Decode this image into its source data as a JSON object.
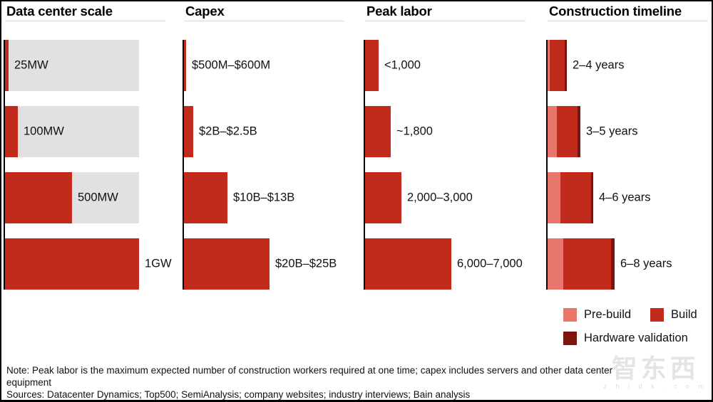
{
  "colors": {
    "build": "#c02b1c",
    "prebuild": "#e8766d",
    "hardware": "#7c150f",
    "track": "#e1e1e1"
  },
  "panels": [
    {
      "title": "Data center scale",
      "rows": [
        {
          "label": "25MW",
          "track": 188,
          "segments": [
            [
              "build",
              5
            ]
          ]
        },
        {
          "label": "100MW",
          "track": 188,
          "segments": [
            [
              "build",
              18
            ]
          ]
        },
        {
          "label": "500MW",
          "track": 188,
          "segments": [
            [
              "build",
              94
            ]
          ]
        },
        {
          "label": "1GW",
          "track": 188,
          "segments": [
            [
              "build",
              188
            ]
          ]
        }
      ]
    },
    {
      "title": "Capex",
      "rows": [
        {
          "label": "$500M–$600M",
          "segments": [
            [
              "build",
              3
            ]
          ]
        },
        {
          "label": "$2B–$2.5B",
          "segments": [
            [
              "build",
              13
            ]
          ]
        },
        {
          "label": "$10B–$13B",
          "segments": [
            [
              "build",
              61
            ]
          ]
        },
        {
          "label": "$20B–$25B",
          "segments": [
            [
              "build",
              120
            ]
          ]
        }
      ]
    },
    {
      "title": "Peak labor",
      "rows": [
        {
          "label": "<1,000",
          "segments": [
            [
              "build",
              19
            ]
          ]
        },
        {
          "label": "~1,800",
          "segments": [
            [
              "build",
              36
            ]
          ]
        },
        {
          "label": "2,000–3,000",
          "segments": [
            [
              "build",
              51
            ]
          ]
        },
        {
          "label": "6,000–7,000",
          "segments": [
            [
              "build",
              121
            ]
          ]
        }
      ]
    },
    {
      "title": "Construction timeline",
      "rows": [
        {
          "label": "2–4 years",
          "segments": [
            [
              "prebuild",
              3
            ],
            [
              "build",
              21
            ],
            [
              "hardware",
              3
            ]
          ]
        },
        {
          "label": "3–5 years",
          "segments": [
            [
              "prebuild",
              13
            ],
            [
              "build",
              29
            ],
            [
              "hardware",
              4
            ]
          ]
        },
        {
          "label": "4–6 years",
          "segments": [
            [
              "prebuild",
              18
            ],
            [
              "build",
              43
            ],
            [
              "hardware",
              3
            ]
          ]
        },
        {
          "label": "6–8 years",
          "segments": [
            [
              "prebuild",
              22
            ],
            [
              "build",
              67
            ],
            [
              "hardware",
              5
            ]
          ]
        }
      ]
    }
  ],
  "legend": {
    "items": [
      {
        "label": "Pre-build",
        "color": "prebuild"
      },
      {
        "label": "Build",
        "color": "build"
      },
      {
        "label": "Hardware validation",
        "color": "hardware"
      }
    ]
  },
  "notes": {
    "note": "Note: Peak labor is the maximum expected number of construction workers required at one time; capex includes servers and other data center equipment",
    "sources": "Sources: Datacenter Dynamics; Top500; SemiAnalysis; company websites; industry interviews; Bain analysis"
  },
  "watermark": {
    "text": "智东西",
    "subtext": "z h i d x . c o m"
  },
  "chart_data": [
    {
      "type": "bar",
      "orientation": "horizontal",
      "title": "Data center scale",
      "categories": [
        "25MW",
        "100MW",
        "500MW",
        "1GW"
      ],
      "values_mw": [
        25,
        100,
        500,
        1000
      ],
      "axis_max_mw": 1000,
      "background_track": true
    },
    {
      "type": "bar",
      "orientation": "horizontal",
      "title": "Capex",
      "categories": [
        "25MW",
        "100MW",
        "500MW",
        "1GW"
      ],
      "value_labels": [
        "$500M–$600M",
        "$2B–$2.5B",
        "$10B–$13B",
        "$20B–$25B"
      ],
      "values_usd_billions_range": [
        [
          0.5,
          0.6
        ],
        [
          2,
          2.5
        ],
        [
          10,
          13
        ],
        [
          20,
          25
        ]
      ]
    },
    {
      "type": "bar",
      "orientation": "horizontal",
      "title": "Peak labor",
      "categories": [
        "25MW",
        "100MW",
        "500MW",
        "1GW"
      ],
      "value_labels": [
        "<1,000",
        "~1,800",
        "2,000–3,000",
        "6,000–7,000"
      ],
      "values_workers_range": [
        [
          0,
          1000
        ],
        [
          1800,
          1800
        ],
        [
          2000,
          3000
        ],
        [
          6000,
          7000
        ]
      ]
    },
    {
      "type": "bar",
      "orientation": "horizontal",
      "stacked": true,
      "title": "Construction timeline",
      "categories": [
        "25MW",
        "100MW",
        "500MW",
        "1GW"
      ],
      "value_labels": [
        "2–4 years",
        "3–5 years",
        "4–6 years",
        "6–8 years"
      ],
      "values_years_range": [
        [
          2,
          4
        ],
        [
          3,
          5
        ],
        [
          4,
          6
        ],
        [
          6,
          8
        ]
      ],
      "series": [
        "Pre-build",
        "Build",
        "Hardware validation"
      ],
      "legend_position": "bottom-right"
    }
  ]
}
